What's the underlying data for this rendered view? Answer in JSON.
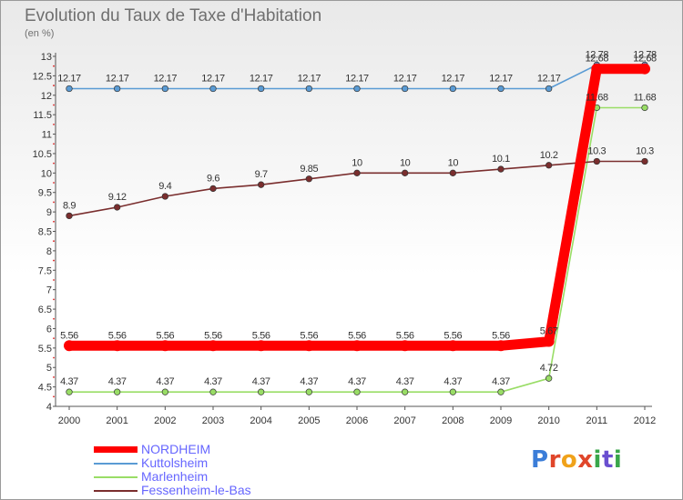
{
  "chart_data": {
    "type": "line",
    "title": "Evolution du Taux de Taxe d'Habitation",
    "subtitle": "(en %)",
    "categories": [
      "2000",
      "2001",
      "2002",
      "2003",
      "2004",
      "2005",
      "2006",
      "2007",
      "2008",
      "2009",
      "2010",
      "2011",
      "2012"
    ],
    "ylim": [
      4,
      13
    ],
    "yticks": [
      "4",
      "4.5",
      "5",
      "5.5",
      "6",
      "6.5",
      "7",
      "7.5",
      "8",
      "8.5",
      "9",
      "9.5",
      "10",
      "10.5",
      "11",
      "11.5",
      "12",
      "12.5",
      "13"
    ],
    "grid": false,
    "legend_position": "bottom-left",
    "series": [
      {
        "name": "NORDHEIM",
        "color": "#ff0000",
        "values": [
          5.56,
          5.56,
          5.56,
          5.56,
          5.56,
          5.56,
          5.56,
          5.56,
          5.56,
          5.56,
          5.67,
          12.68,
          12.68
        ],
        "labels": [
          "5.56",
          "5.56",
          "5.56",
          "5.56",
          "5.56",
          "5.56",
          "5.56",
          "5.56",
          "5.56",
          "5.56",
          "5.67",
          "12.68",
          "12.68"
        ]
      },
      {
        "name": "Kuttolsheim",
        "color": "#5a9bd4",
        "values": [
          12.17,
          12.17,
          12.17,
          12.17,
          12.17,
          12.17,
          12.17,
          12.17,
          12.17,
          12.17,
          12.17,
          12.78,
          12.78
        ],
        "labels": [
          "12.17",
          "12.17",
          "12.17",
          "12.17",
          "12.17",
          "12.17",
          "12.17",
          "12.17",
          "12.17",
          "12.17",
          "12.17",
          "12.78",
          "12.78"
        ]
      },
      {
        "name": "Marlenheim",
        "color": "#99dd66",
        "values": [
          4.37,
          4.37,
          4.37,
          4.37,
          4.37,
          4.37,
          4.37,
          4.37,
          4.37,
          4.37,
          4.72,
          11.68,
          11.68
        ],
        "labels": [
          "4.37",
          "4.37",
          "4.37",
          "4.37",
          "4.37",
          "4.37",
          "4.37",
          "4.37",
          "4.37",
          "4.37",
          "4.72",
          "11.68",
          "11.68"
        ]
      },
      {
        "name": "Fessenheim-le-Bas",
        "color": "#7a2e2e",
        "values": [
          8.9,
          9.12,
          9.4,
          9.6,
          9.7,
          9.85,
          10,
          10,
          10,
          10.1,
          10.2,
          10.3,
          10.3
        ],
        "labels": [
          "8.9",
          "9.12",
          "9.4",
          "9.6",
          "9.7",
          "9.85",
          "10",
          "10",
          "10",
          "10.1",
          "10.2",
          "10.3",
          "10.3"
        ]
      }
    ]
  },
  "logo": {
    "letters": [
      "P",
      "r",
      "o",
      "x",
      "i",
      "t",
      "i"
    ]
  }
}
